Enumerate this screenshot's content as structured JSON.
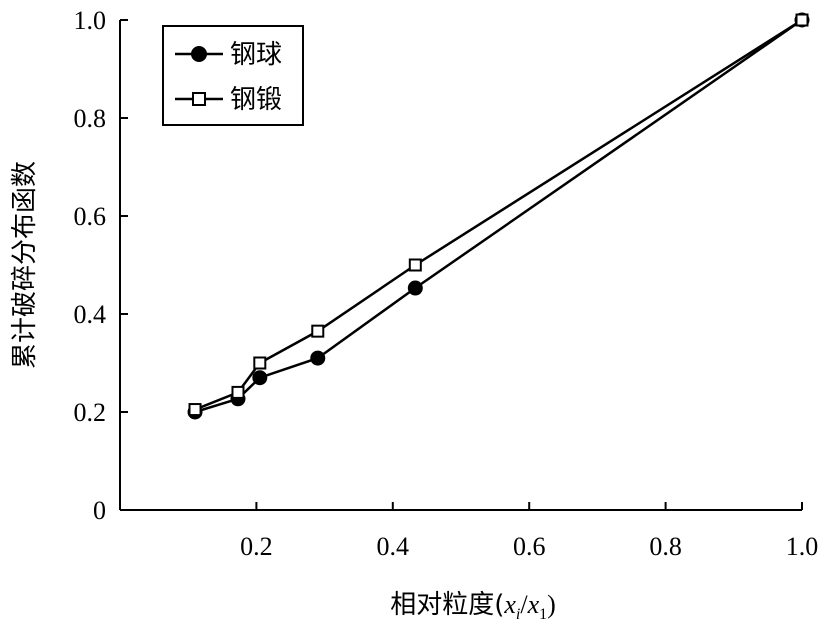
{
  "chart_data": {
    "type": "line",
    "xlabel_main": "相对粒度(",
    "xlabel_var_x": "x",
    "xlabel_sub_i": "i",
    "xlabel_slash": "/",
    "xlabel_sub_1": "1",
    "xlabel_close": ")",
    "ylabel": "累计破碎分布函数",
    "xlim": [
      0,
      1.0
    ],
    "ylim": [
      0,
      1.0
    ],
    "x_ticks": [
      0.2,
      0.4,
      0.6,
      0.8,
      1.0
    ],
    "x_tick_labels": [
      "0.2",
      "0.4",
      "0.6",
      "0.8",
      "1.0"
    ],
    "y_ticks": [
      0,
      0.2,
      0.4,
      0.6,
      0.8,
      1.0
    ],
    "y_tick_labels": [
      "0",
      "0.2",
      "0.4",
      "0.6",
      "0.8",
      "1.0"
    ],
    "grid": false,
    "legend_position": "top-left",
    "series": [
      {
        "name": "钢球",
        "marker": "filled-circle",
        "color": "#000000",
        "x": [
          0.11,
          0.173,
          0.205,
          0.29,
          0.433,
          1.0
        ],
        "y": [
          0.2,
          0.227,
          0.27,
          0.31,
          0.453,
          1.0
        ]
      },
      {
        "name": "钢锻",
        "marker": "open-square",
        "color": "#000000",
        "x": [
          0.11,
          0.173,
          0.205,
          0.29,
          0.433,
          1.0
        ],
        "y": [
          0.205,
          0.24,
          0.3,
          0.365,
          0.5,
          1.0
        ]
      }
    ]
  }
}
